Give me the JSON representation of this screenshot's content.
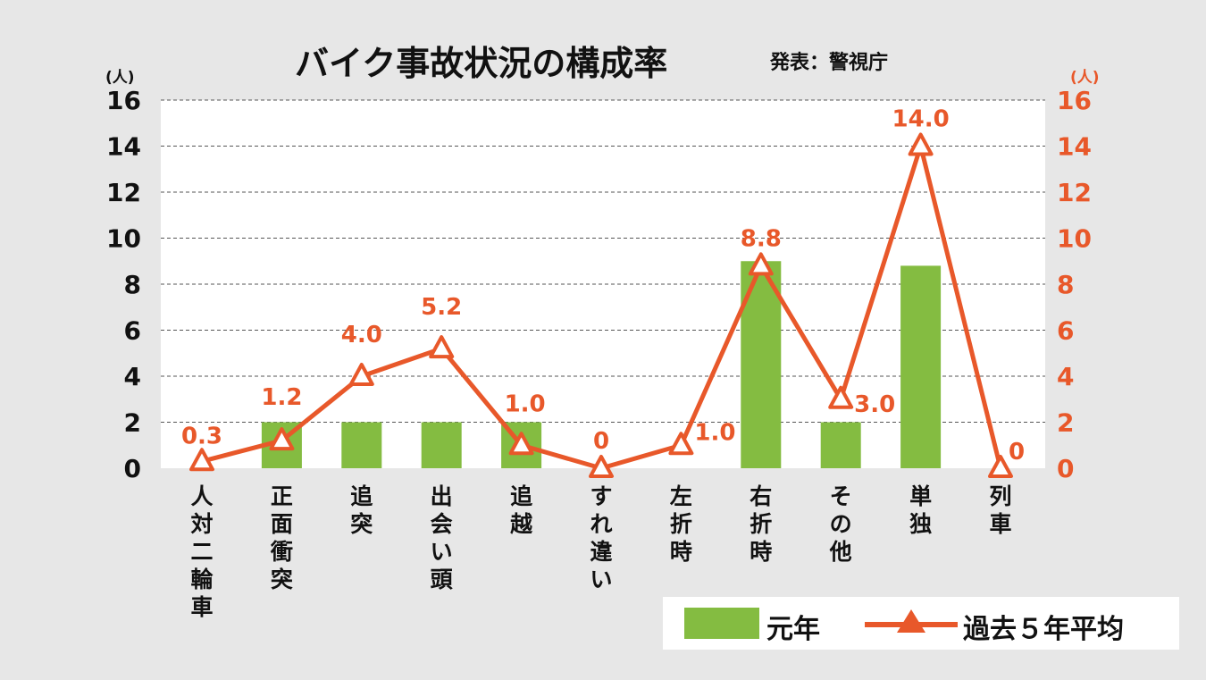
{
  "title": "バイク事故状況の構成率",
  "source": "発表：警視庁",
  "colors": {
    "bar": "#84bc41",
    "line": "#e8582a",
    "plot_bg": "#ffffff",
    "page_bg": "#e7e7e7",
    "grid": "#555555"
  },
  "chart_data": {
    "type": "bar",
    "categories": [
      "人対二輪車",
      "正面衝突",
      "追突",
      "出会い頭",
      "追越",
      "すれ違い",
      "左折時",
      "右折時",
      "その他",
      "単独",
      "列車"
    ],
    "y_unit_left": "(人)",
    "y_unit_right": "(人)",
    "ylim": [
      0,
      16
    ],
    "yticks": [
      0,
      2,
      4,
      6,
      8,
      10,
      12,
      14,
      16
    ],
    "grid": "horizontal dashed",
    "legend": "bottom-right",
    "series": [
      {
        "name": "元年",
        "type": "bar",
        "axis": "left",
        "values": [
          0,
          2,
          2,
          2,
          2,
          0,
          0,
          9,
          2,
          8.8,
          0
        ]
      },
      {
        "name": "過去５年平均",
        "type": "line",
        "axis": "right",
        "marker": "triangle",
        "values": [
          0.3,
          1.2,
          4.0,
          5.2,
          1.0,
          0,
          1.0,
          8.8,
          3.0,
          14.0,
          0
        ],
        "labels": [
          "0.3",
          "1.2",
          "4.0",
          "5.2",
          "1.0",
          "0",
          "1.0",
          "8.8",
          "3.0",
          "14.0",
          "0"
        ]
      }
    ]
  }
}
